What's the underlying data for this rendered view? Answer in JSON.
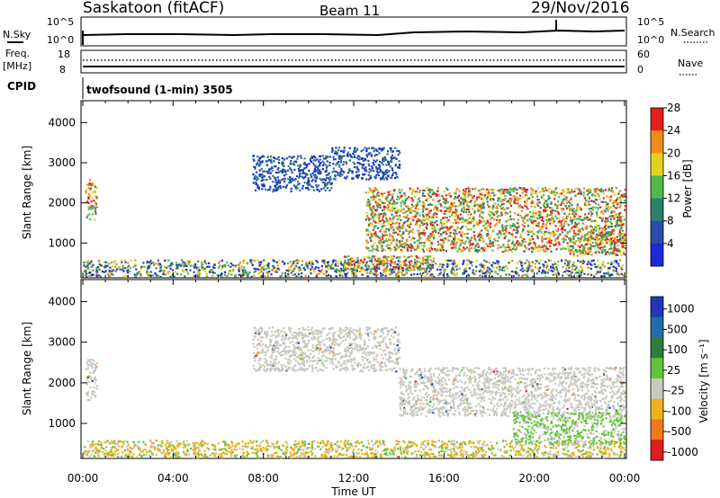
{
  "header": {
    "station": "Saskatoon (fitACF)",
    "beam": "Beam 11",
    "date": "29/Nov/2016"
  },
  "strip": {
    "nsky_label": "N.Sky",
    "nsky_ticks": [
      "10^5",
      "10^0"
    ],
    "nsearch_label": "N.Search",
    "nsearch_ticks": [
      "10^5",
      "10^0"
    ],
    "freq_label": "Freq.",
    "freq_unit": "[MHz]",
    "freq_ticks": [
      "18",
      "8"
    ],
    "nave_label": "Nave",
    "nave_ticks": [
      "60",
      "0"
    ],
    "cpid_label": "CPID",
    "cpid_value": "twofsound (1-min) 3505"
  },
  "axes": {
    "ylabel": "Slant Range [km]",
    "xlabel": "Time UT",
    "x_ticks": [
      "00:00",
      "04:00",
      "08:00",
      "12:00",
      "16:00",
      "20:00",
      "00:00"
    ],
    "y_ticks": [
      "1000",
      "2000",
      "3000",
      "4000"
    ]
  },
  "power_scale": {
    "label": "Power [dB]",
    "ticks": [
      "4",
      "8",
      "12",
      "16",
      "20",
      "24",
      "28"
    ],
    "colors": [
      "#1e2ad8",
      "#2a4fa6",
      "#2f7f70",
      "#4fb84f",
      "#e2d21f",
      "#f08a1a",
      "#e41e1e"
    ]
  },
  "velocity_scale": {
    "label": "Velocity [m s⁻¹]",
    "ticks": [
      "1000",
      "500",
      "100",
      "25",
      "-25",
      "-100",
      "-500",
      "-1000"
    ],
    "colors": [
      "#2336b8",
      "#1f6fa6",
      "#2e7d3a",
      "#63c43a",
      "#c8c8c0",
      "#f0b019",
      "#f07a1a",
      "#e01e1e"
    ]
  },
  "chart_data": [
    {
      "type": "heatmap",
      "title": "Power",
      "xlabel": "Time UT",
      "ylabel": "Slant Range [km]",
      "xlim": [
        0,
        24
      ],
      "ylim": [
        180,
        4500
      ],
      "x_unit": "hours UT",
      "regions": [
        {
          "t0": 0.1,
          "t1": 0.6,
          "r0": 1600,
          "r1": 2600,
          "level": "high"
        },
        {
          "t0": 7.5,
          "t1": 11.0,
          "r0": 2300,
          "r1": 3200,
          "level": "low"
        },
        {
          "t0": 11.0,
          "t1": 14.0,
          "r0": 2600,
          "r1": 3400,
          "level": "low"
        },
        {
          "t0": 12.5,
          "t1": 24.0,
          "r0": 800,
          "r1": 2400,
          "level": "high"
        },
        {
          "t0": 0.0,
          "t1": 24.0,
          "r0": 180,
          "r1": 600,
          "level": "mixed"
        },
        {
          "t0": 11.5,
          "t1": 15.5,
          "r0": 350,
          "r1": 700,
          "level": "high"
        },
        {
          "t0": 21.5,
          "t1": 24.0,
          "r0": 700,
          "r1": 1300,
          "level": "high"
        }
      ],
      "grid": false
    },
    {
      "type": "heatmap",
      "title": "Velocity",
      "xlabel": "Time UT",
      "ylabel": "Slant Range [km]",
      "xlim": [
        0,
        24
      ],
      "ylim": [
        180,
        4500
      ],
      "x_unit": "hours UT",
      "regions": [
        {
          "t0": 0.1,
          "t1": 0.6,
          "r0": 1600,
          "r1": 2600,
          "level": "near-zero"
        },
        {
          "t0": 7.5,
          "t1": 14.0,
          "r0": 2300,
          "r1": 3400,
          "level": "near-zero"
        },
        {
          "t0": 14.0,
          "t1": 24.0,
          "r0": 1200,
          "r1": 2400,
          "level": "near-zero"
        },
        {
          "t0": 0.0,
          "t1": 24.0,
          "r0": 180,
          "r1": 600,
          "level": "negative-small"
        },
        {
          "t0": 19.0,
          "t1": 24.0,
          "r0": 500,
          "r1": 1300,
          "level": "positive-small"
        }
      ],
      "grid": false
    }
  ]
}
